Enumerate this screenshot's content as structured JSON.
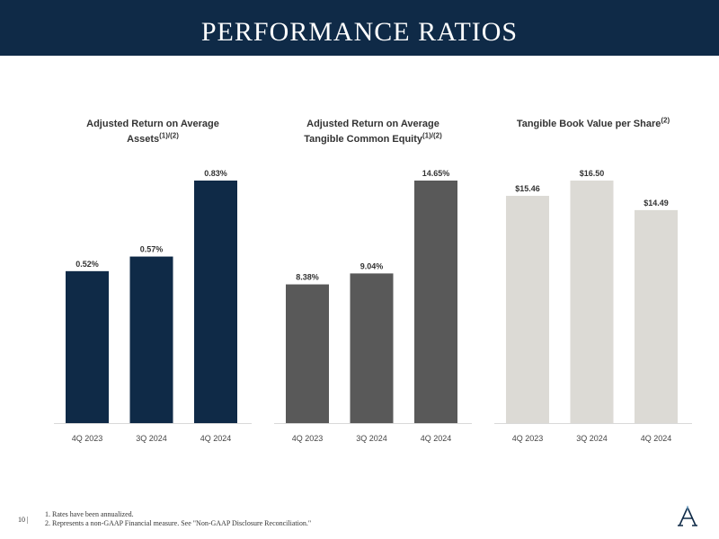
{
  "header": {
    "title": "PERFORMANCE RATIOS"
  },
  "charts": [
    {
      "title_line1": "Adjusted Return on Average",
      "title_line2": "Assets",
      "title_sup": "(1)/(2)"
    },
    {
      "title_line1": "Adjusted Return on Average",
      "title_line2": "Tangible Common Equity",
      "title_sup": "(1)/(2)"
    },
    {
      "title_line1": "Tangible Book Value per Share",
      "title_line2": "",
      "title_sup": "(2)"
    }
  ],
  "chart_data": [
    {
      "type": "bar",
      "title": "Adjusted Return on Average Assets(1)/(2)",
      "categories": [
        "4Q 2023",
        "3Q 2024",
        "4Q 2024"
      ],
      "values": [
        0.52,
        0.57,
        0.83
      ],
      "labels": [
        "0.52%",
        "0.57%",
        "0.83%"
      ],
      "color": "#0f2a47",
      "ylim": [
        0,
        0.83
      ]
    },
    {
      "type": "bar",
      "title": "Adjusted Return on Average Tangible Common Equity(1)/(2)",
      "categories": [
        "4Q 2023",
        "3Q 2024",
        "4Q 2024"
      ],
      "values": [
        8.38,
        9.04,
        14.65
      ],
      "labels": [
        "8.38%",
        "9.04%",
        "14.65%"
      ],
      "color": "#595959",
      "ylim": [
        0,
        14.65
      ]
    },
    {
      "type": "bar",
      "title": "Tangible Book Value per Share(2)",
      "categories": [
        "4Q 2023",
        "3Q 2024",
        "4Q 2024"
      ],
      "values": [
        15.46,
        16.5,
        14.49
      ],
      "labels": [
        "$15.46",
        "$16.50",
        "$14.49"
      ],
      "color": "#dcdad5",
      "ylim": [
        0,
        16.5
      ]
    }
  ],
  "footer": {
    "page": "10 |",
    "note1": "1. Rates have been annualized.",
    "note2": "2. Represents a non-GAAP Financial measure. See \"Non-GAAP Disclosure Reconciliation.\""
  },
  "logo": {
    "icon": "company-logo-a-icon"
  }
}
